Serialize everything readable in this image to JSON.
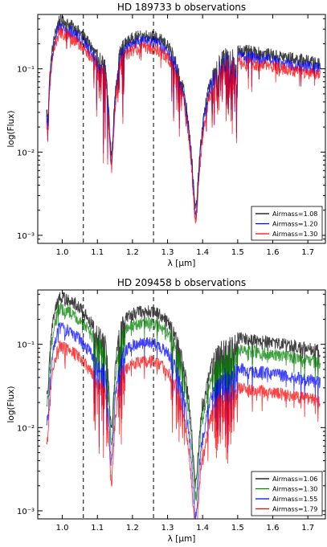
{
  "chart_data": [
    {
      "type": "line",
      "title": "HD 189733 b observations",
      "xlabel": "λ [μm]",
      "ylabel": "log(Flux)",
      "xlim": [
        0.93,
        1.75
      ],
      "ylim": [
        0.0008,
        0.45
      ],
      "yscale": "log",
      "xticks": [
        1.0,
        1.1,
        1.2,
        1.3,
        1.4,
        1.5,
        1.6,
        1.7
      ],
      "xtick_labels": [
        "1.0",
        "1.1",
        "1.2",
        "1.3",
        "1.4",
        "1.5",
        "1.6",
        "1.7"
      ],
      "yticks": [
        0.001,
        0.01,
        0.1
      ],
      "ytick_labels": [
        "10⁻³",
        "10⁻²",
        "10⁻¹"
      ],
      "vlines": [
        1.06,
        1.26
      ],
      "legend_position": "lower-right",
      "grid": false,
      "series": [
        {
          "name": "Airmass=1.08",
          "color": "#000000",
          "continuum_scale": 1.0
        },
        {
          "name": "Airmass=1.20",
          "color": "#0000ff",
          "continuum_scale": 0.85
        },
        {
          "name": "Airmass=1.30",
          "color": "#ff0000",
          "continuum_scale": 0.72
        }
      ]
    },
    {
      "type": "line",
      "title": "HD 209458 b observations",
      "xlabel": "λ [μm]",
      "ylabel": "log(Flux)",
      "xlim": [
        0.93,
        1.75
      ],
      "ylim": [
        0.0008,
        0.45
      ],
      "yscale": "log",
      "xticks": [
        1.0,
        1.1,
        1.2,
        1.3,
        1.4,
        1.5,
        1.6,
        1.7
      ],
      "xtick_labels": [
        "1.0",
        "1.1",
        "1.2",
        "1.3",
        "1.4",
        "1.5",
        "1.6",
        "1.7"
      ],
      "yticks": [
        0.001,
        0.01,
        0.1
      ],
      "ytick_labels": [
        "10⁻³",
        "10⁻²",
        "10⁻¹"
      ],
      "vlines": [
        1.06,
        1.26
      ],
      "legend_position": "lower-right",
      "grid": false,
      "series": [
        {
          "name": "Airmass=1.06",
          "color": "#000000",
          "continuum_scale": 1.0
        },
        {
          "name": "Airmass=1.30",
          "color": "#008000",
          "continuum_scale": 0.72
        },
        {
          "name": "Airmass=1.55",
          "color": "#0000ff",
          "continuum_scale": 0.42
        },
        {
          "name": "Airmass=1.79",
          "color": "#ff0000",
          "continuum_scale": 0.25
        }
      ]
    }
  ]
}
